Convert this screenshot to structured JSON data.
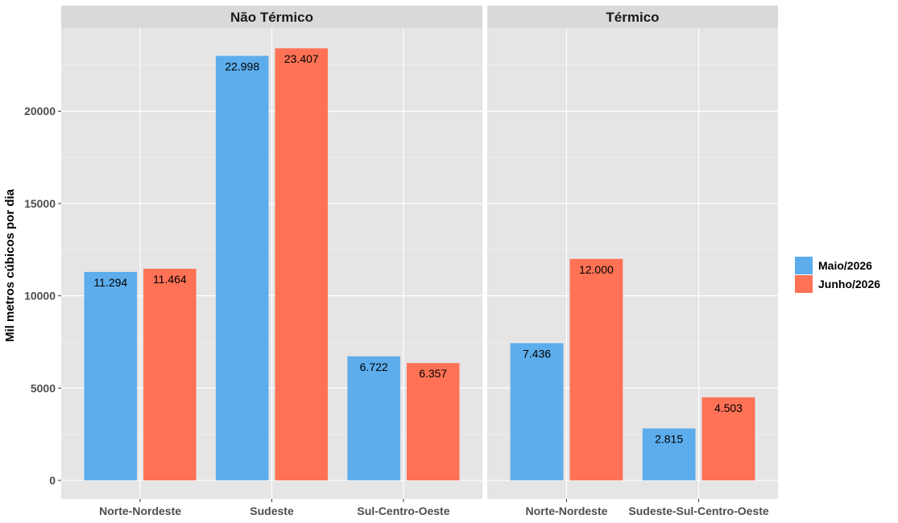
{
  "chart_data": {
    "type": "bar",
    "ylabel": "Mil metros cúbicos por dia",
    "ylim": [
      -1000,
      24500
    ],
    "yticks": [
      0,
      5000,
      10000,
      15000,
      20000
    ],
    "ytick_labels": [
      "0",
      "5000",
      "10000",
      "15000",
      "20000"
    ],
    "legend_position": "right",
    "series": [
      {
        "name": "Maio/2026",
        "color": "#5DADEC"
      },
      {
        "name": "Junho/2026",
        "color": "#FF7256"
      }
    ],
    "panels": [
      {
        "title": "Não Térmico",
        "categories": [
          "Norte-Nordeste",
          "Sudeste",
          "Sul-Centro-Oeste"
        ],
        "values": [
          [
            11294,
            11464
          ],
          [
            22998,
            23407
          ],
          [
            6722,
            6357
          ]
        ],
        "labels": [
          [
            "11.294",
            "11.464"
          ],
          [
            "22.998",
            "23.407"
          ],
          [
            "6.722",
            "6.357"
          ]
        ]
      },
      {
        "title": "Térmico",
        "categories": [
          "Norte-Nordeste",
          "Sudeste-Sul-Centro-Oeste"
        ],
        "values": [
          [
            7436,
            12000
          ],
          [
            2815,
            4503
          ]
        ],
        "labels": [
          [
            "7.436",
            "12.000"
          ],
          [
            "2.815",
            "4.503"
          ]
        ]
      }
    ]
  }
}
